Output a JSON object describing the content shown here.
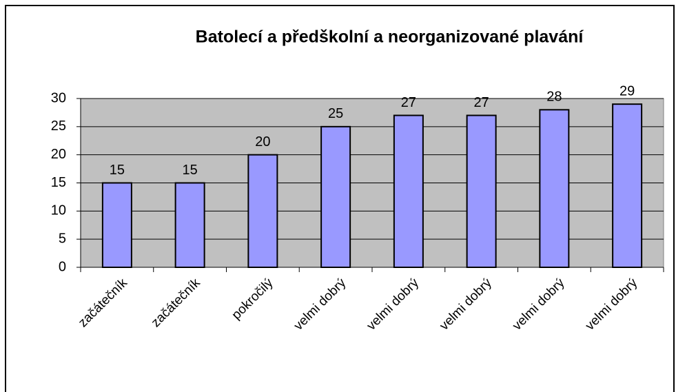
{
  "chart_data": {
    "type": "bar",
    "title": "Batolecí a předškolní a neorganizované plavání",
    "categories": [
      "začátečník",
      "začátečník",
      "pokročilý",
      "velmi dobrý",
      "velmi dobrý",
      "velmi dobrý",
      "velmi dobrý",
      "velmi dobrý"
    ],
    "values": [
      15,
      15,
      20,
      25,
      27,
      27,
      28,
      29
    ],
    "color": "#9999ff",
    "ylim": [
      0,
      30
    ],
    "yticks": [
      0,
      5,
      10,
      15,
      20,
      25,
      30
    ],
    "grid": true
  }
}
